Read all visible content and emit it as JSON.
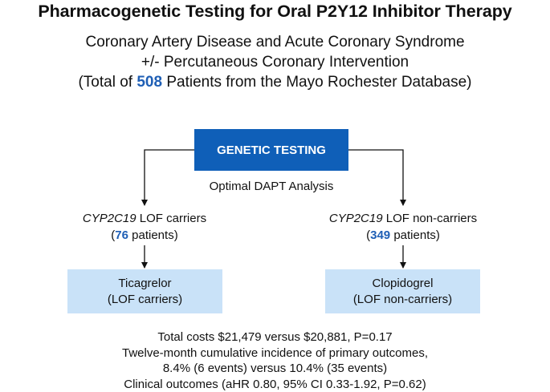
{
  "title": "Pharmacogenetic Testing for Oral P2Y12 Inhibitor Therapy",
  "subtitle": {
    "line1": "Coronary Artery Disease and Acute Coronary Syndrome",
    "line2": "+/- Percutaneous Coronary Intervention",
    "line3_prefix": "(Total of ",
    "line3_count": "508",
    "line3_suffix": " Patients from the Mayo Rochester Database)"
  },
  "genetic_testing_box": "GENETIC TESTING",
  "analysis_label": "Optimal DAPT Analysis",
  "left_group": {
    "gene": "CYP2C19",
    "label": " LOF carriers",
    "count_prefix": "(",
    "count": "76",
    "count_suffix": " patients)"
  },
  "right_group": {
    "gene": "CYP2C19",
    "label": " LOF non-carriers",
    "count_prefix": "(",
    "count": "349",
    "count_suffix": " patients)"
  },
  "left_drug": {
    "name": "Ticagrelor",
    "sub": "(LOF carriers)"
  },
  "right_drug": {
    "name": "Clopidogrel",
    "sub": "(LOF non-carriers)"
  },
  "outcomes": [
    "Total costs $21,479 versus $20,881, P=0.17",
    "Twelve-month cumulative incidence of primary outcomes,",
    "8.4% (6 events) versus 10.4% (35 events)",
    "Clinical outcomes (aHR 0.80, 95% CI 0.33-1.92, P=0.62)"
  ],
  "colors": {
    "header_box": "#0f5fb8",
    "drug_box": "#c9e2f8",
    "highlight_number": "#1f5fb5"
  }
}
